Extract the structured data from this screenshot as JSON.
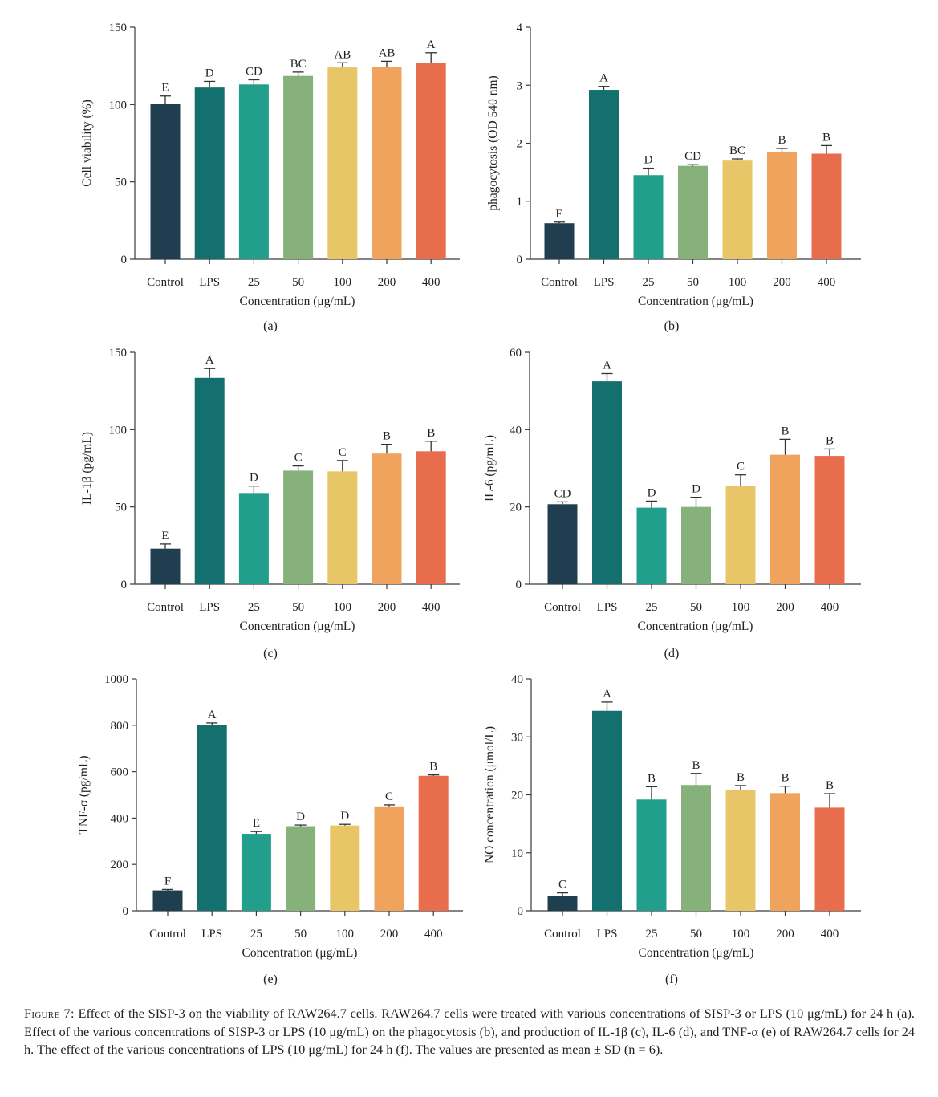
{
  "colors": [
    "#1f3f51",
    "#14706e",
    "#229e8d",
    "#87b17b",
    "#e8c566",
    "#f0a35d",
    "#e86d4d"
  ],
  "chart_data": [
    {
      "type": "bar",
      "panel": "(a)",
      "categories": [
        "Control",
        "LPS",
        "25",
        "50",
        "100",
        "200",
        "400"
      ],
      "values": [
        100.5,
        111,
        113,
        118.5,
        124,
        124.5,
        127
      ],
      "errors": [
        5,
        4,
        3,
        2.5,
        3,
        3.5,
        6.5
      ],
      "letters": [
        "E",
        "D",
        "CD",
        "BC",
        "AB",
        "AB",
        "A"
      ],
      "xlabel": "Concentration (μg/mL)",
      "ylabel": "Cell viability (%)",
      "ylim": [
        0,
        150
      ],
      "yticks": [
        0,
        50,
        100,
        150
      ],
      "grid": false
    },
    {
      "type": "bar",
      "panel": "(b)",
      "categories": [
        "Control",
        "LPS",
        "25",
        "50",
        "100",
        "200",
        "400"
      ],
      "values": [
        0.62,
        2.92,
        1.45,
        1.61,
        1.7,
        1.85,
        1.82
      ],
      "errors": [
        0.02,
        0.06,
        0.12,
        0.02,
        0.03,
        0.06,
        0.14
      ],
      "letters": [
        "E",
        "A",
        "D",
        "CD",
        "BC",
        "B",
        "B"
      ],
      "xlabel": "Concentration (μg/mL)",
      "ylabel": "phagocytosis (OD 540 nm)",
      "ylim": [
        0,
        4
      ],
      "yticks": [
        0,
        1,
        2,
        3,
        4
      ],
      "grid": false
    },
    {
      "type": "bar",
      "panel": "(c)",
      "categories": [
        "Control",
        "LPS",
        "25",
        "50",
        "100",
        "200",
        "400"
      ],
      "values": [
        23,
        133.5,
        59,
        73.5,
        73,
        84.5,
        86
      ],
      "errors": [
        3,
        6,
        4.5,
        3,
        7,
        6,
        6.5
      ],
      "letters": [
        "E",
        "A",
        "D",
        "C",
        "C",
        "B",
        "B"
      ],
      "xlabel": "Concentration (μg/mL)",
      "ylabel": "IL-1β (pg/mL)",
      "ylim": [
        0,
        150
      ],
      "yticks": [
        0,
        50,
        100,
        150
      ],
      "grid": false
    },
    {
      "type": "bar",
      "panel": "(d)",
      "categories": [
        "Control",
        "LPS",
        "25",
        "50",
        "100",
        "200",
        "400"
      ],
      "values": [
        20.7,
        52.5,
        19.8,
        20,
        25.5,
        33.5,
        33.2
      ],
      "errors": [
        0.6,
        2,
        1.7,
        2.5,
        2.8,
        4,
        1.8
      ],
      "letters": [
        "CD",
        "A",
        "D",
        "D",
        "C",
        "B",
        "B"
      ],
      "xlabel": "Concentration (μg/mL)",
      "ylabel": "IL-6 (pg/mL)",
      "ylim": [
        0,
        60
      ],
      "yticks": [
        0,
        20,
        40,
        60
      ],
      "grid": false
    },
    {
      "type": "bar",
      "panel": "(e)",
      "categories": [
        "Control",
        "LPS",
        "25",
        "50",
        "100",
        "200",
        "400"
      ],
      "values": [
        88,
        802,
        332,
        365,
        368,
        447,
        582
      ],
      "errors": [
        4,
        8,
        10,
        5,
        5,
        10,
        4
      ],
      "letters": [
        "F",
        "A",
        "E",
        "D",
        "D",
        "C",
        "B"
      ],
      "xlabel": "Concentration (μg/mL)",
      "ylabel": "TNF-α (pg/mL)",
      "ylim": [
        0,
        1000
      ],
      "yticks": [
        0,
        200,
        400,
        600,
        800,
        1000
      ],
      "grid": false
    },
    {
      "type": "bar",
      "panel": "(f)",
      "categories": [
        "Control",
        "LPS",
        "25",
        "50",
        "100",
        "200",
        "400"
      ],
      "values": [
        2.6,
        34.5,
        19.2,
        21.7,
        20.8,
        20.3,
        17.8
      ],
      "errors": [
        0.5,
        1.5,
        2.2,
        2,
        0.8,
        1.2,
        2.4
      ],
      "letters": [
        "C",
        "A",
        "B",
        "B",
        "B",
        "B",
        "B"
      ],
      "xlabel": "Concentration (μg/mL)",
      "ylabel": "NO concentration (μmol/L)",
      "ylim": [
        0,
        40
      ],
      "yticks": [
        0,
        10,
        20,
        30,
        40
      ],
      "grid": false
    }
  ],
  "caption": {
    "label": "Figure 7:",
    "text": " Effect of the SISP-3 on the viability of RAW264.7 cells. RAW264.7 cells were treated with various concentrations of SISP-3 or LPS (10 μg/mL) for 24 h (a). Effect of the various concentrations of SISP-3 or LPS (10 μg/mL) on the phagocytosis (b), and production of IL-1β (c), IL-6 (d), and TNF-α (e) of RAW264.7 cells for 24 h. The effect of the various concentrations of LPS (10 μg/mL) for 24 h (f). The values are presented as mean ± SD (n = 6)."
  }
}
